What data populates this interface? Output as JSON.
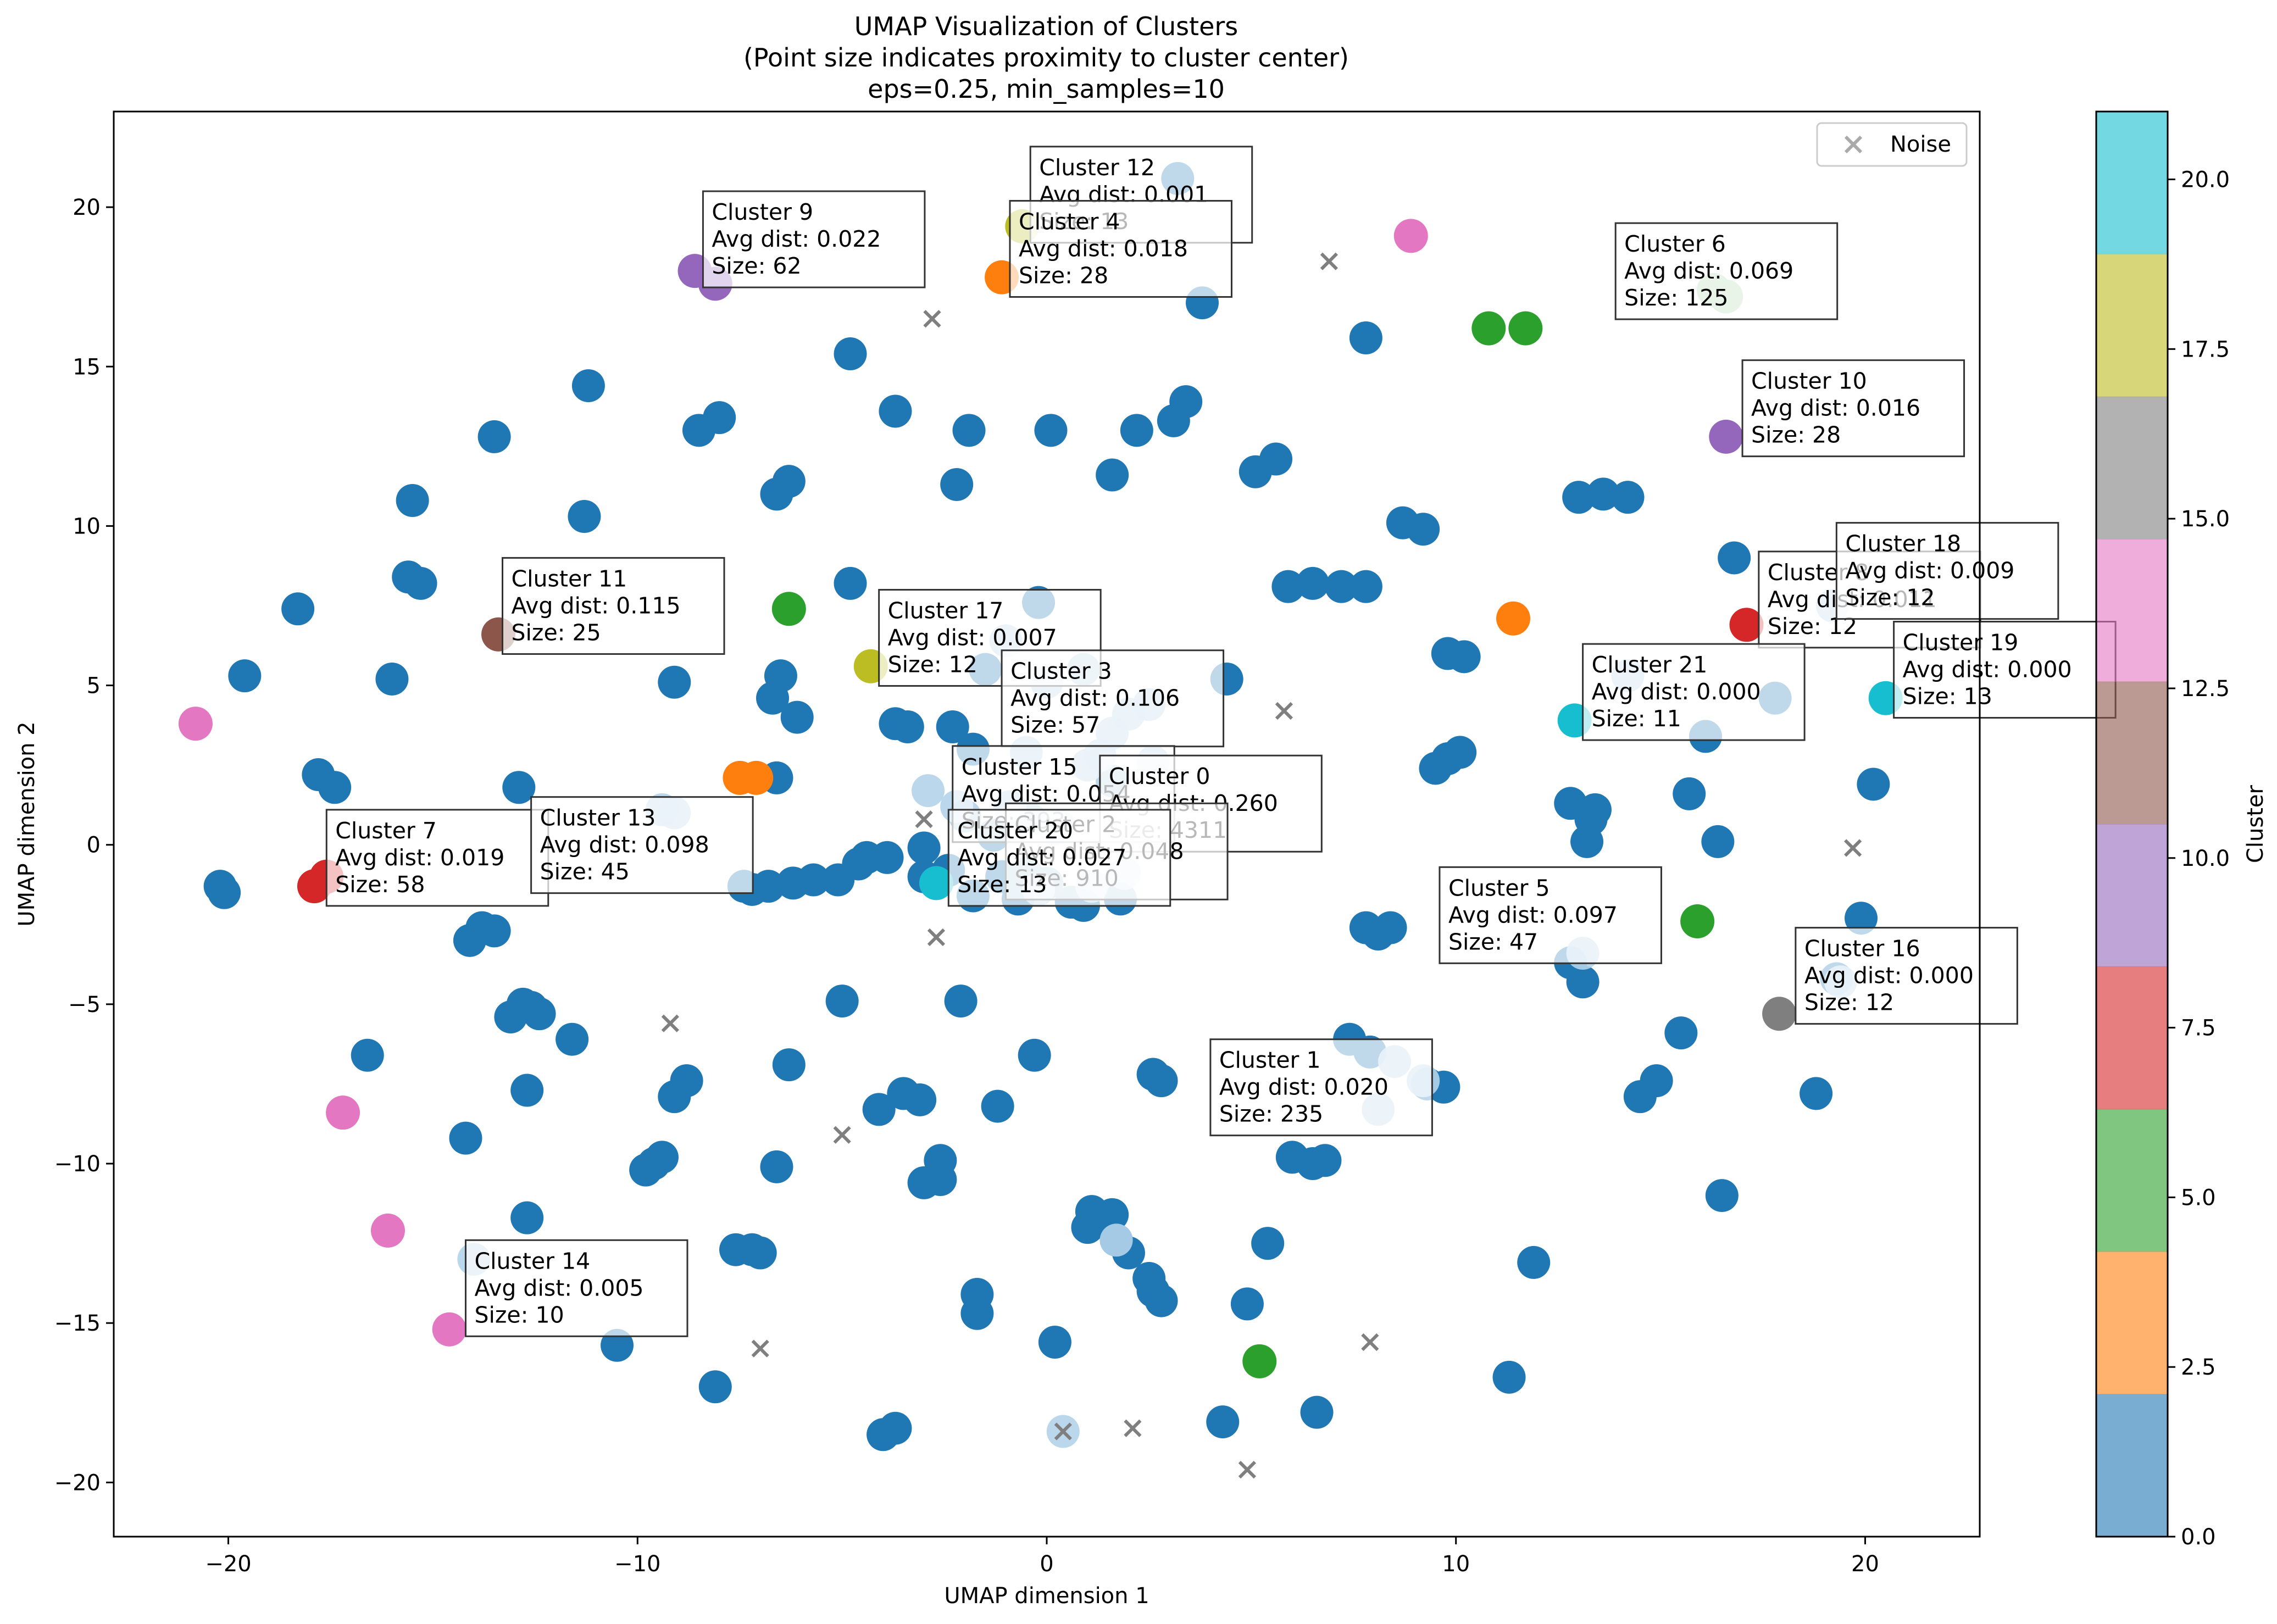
{
  "chart_data": {
    "type": "scatter",
    "title": [
      "UMAP Visualization of Clusters",
      "(Point size indicates proximity to cluster center)",
      "eps=0.25, min_samples=10"
    ],
    "xlabel": "UMAP dimension 1",
    "ylabel": "UMAP dimension 2",
    "xlim": [
      -22.8,
      22.8
    ],
    "ylim": [
      -21.7,
      23
    ],
    "xticks": [
      -20,
      -10,
      0,
      10,
      20
    ],
    "yticks": [
      -20,
      -15,
      -10,
      -5,
      0,
      5,
      10,
      15,
      20
    ],
    "grid": false,
    "legend": {
      "position": "upper right",
      "entries": [
        {
          "label": "Noise",
          "marker": "x",
          "color": "#7f7f7f"
        }
      ]
    },
    "colorbar": {
      "label": "Cluster",
      "range": [
        0,
        21
      ],
      "ticks": [
        "0.0",
        "2.5",
        "5.0",
        "7.5",
        "10.0",
        "12.5",
        "15.0",
        "17.5",
        "20.0"
      ],
      "colors": [
        "#1f77b4",
        "#ff7f0e",
        "#2ca02c",
        "#d62728",
        "#9467bd",
        "#8c564b",
        "#e377c2",
        "#7f7f7f",
        "#bcbd22",
        "#17becf"
      ]
    },
    "base_blue_points": [
      [
        3.2,
        20.9
      ],
      [
        -4.8,
        15.4
      ],
      [
        3.8,
        17.0
      ],
      [
        7.8,
        15.9
      ],
      [
        -11.2,
        14.4
      ],
      [
        -13.5,
        12.8
      ],
      [
        -8.5,
        13.0
      ],
      [
        -8.0,
        13.4
      ],
      [
        -3.7,
        13.6
      ],
      [
        -1.9,
        13.0
      ],
      [
        0.1,
        13.0
      ],
      [
        2.2,
        13.0
      ],
      [
        3.1,
        13.3
      ],
      [
        3.4,
        13.9
      ],
      [
        -6.6,
        11.0
      ],
      [
        -6.3,
        11.4
      ],
      [
        -2.2,
        11.3
      ],
      [
        1.6,
        11.6
      ],
      [
        5.1,
        11.7
      ],
      [
        5.6,
        12.1
      ],
      [
        -11.3,
        10.3
      ],
      [
        -15.5,
        10.8
      ],
      [
        -18.3,
        7.4
      ],
      [
        -19.6,
        5.3
      ],
      [
        -15.6,
        8.4
      ],
      [
        -15.3,
        8.2
      ],
      [
        -16.0,
        5.2
      ],
      [
        -9.1,
        5.1
      ],
      [
        -4.8,
        8.2
      ],
      [
        -6.5,
        5.3
      ],
      [
        -6.7,
        4.6
      ],
      [
        -6.1,
        4.0
      ],
      [
        -3.7,
        3.8
      ],
      [
        -3.4,
        3.7
      ],
      [
        -2.3,
        3.7
      ],
      [
        -1.8,
        3.0
      ],
      [
        -0.2,
        7.6
      ],
      [
        -1.5,
        5.5
      ],
      [
        0.9,
        5.5
      ],
      [
        4.4,
        5.2
      ],
      [
        5.9,
        8.1
      ],
      [
        6.5,
        8.2
      ],
      [
        7.2,
        8.1
      ],
      [
        7.8,
        8.1
      ],
      [
        8.7,
        10.1
      ],
      [
        9.2,
        9.9
      ],
      [
        9.8,
        6.0
      ],
      [
        10.2,
        5.9
      ],
      [
        9.5,
        2.4
      ],
      [
        9.8,
        2.7
      ],
      [
        10.1,
        2.9
      ],
      [
        13.0,
        10.9
      ],
      [
        13.6,
        11.0
      ],
      [
        14.2,
        10.9
      ],
      [
        16.8,
        9.0
      ],
      [
        16.1,
        3.4
      ],
      [
        17.8,
        4.6
      ],
      [
        15.7,
        1.6
      ],
      [
        16.4,
        0.1
      ],
      [
        12.8,
        1.3
      ],
      [
        13.3,
        0.8
      ],
      [
        13.4,
        1.1
      ],
      [
        13.2,
        0.1
      ],
      [
        20.2,
        1.9
      ],
      [
        19.9,
        -2.3
      ],
      [
        19.3,
        -4.2
      ],
      [
        12.8,
        -3.7
      ],
      [
        13.1,
        -4.3
      ],
      [
        7.8,
        -2.6
      ],
      [
        8.1,
        -2.8
      ],
      [
        8.4,
        -2.6
      ],
      [
        7.4,
        -6.1
      ],
      [
        7.9,
        -6.5
      ],
      [
        9.3,
        -7.5
      ],
      [
        9.7,
        -7.6
      ],
      [
        6.0,
        -9.8
      ],
      [
        6.5,
        -10.0
      ],
      [
        6.8,
        -9.9
      ],
      [
        5.4,
        -12.5
      ],
      [
        4.9,
        -14.4
      ],
      [
        11.9,
        -13.1
      ],
      [
        11.3,
        -16.7
      ],
      [
        4.3,
        -18.1
      ],
      [
        6.6,
        -17.8
      ],
      [
        15.5,
        -5.9
      ],
      [
        14.9,
        -7.4
      ],
      [
        14.5,
        -7.9
      ],
      [
        16.5,
        -11.0
      ],
      [
        18.8,
        -7.8
      ],
      [
        2.5,
        -13.6
      ],
      [
        2.6,
        -14.0
      ],
      [
        2.8,
        -14.3
      ],
      [
        1.1,
        -11.5
      ],
      [
        1.6,
        -11.6
      ],
      [
        1.7,
        -12.4
      ],
      [
        1.0,
        -12.0
      ],
      [
        2.0,
        -12.8
      ],
      [
        2.6,
        -7.2
      ],
      [
        2.8,
        -7.4
      ],
      [
        0.2,
        -15.6
      ],
      [
        -1.7,
        -14.1
      ],
      [
        -1.7,
        -14.7
      ],
      [
        -4.0,
        -18.5
      ],
      [
        -3.7,
        -18.3
      ],
      [
        -5.0,
        -4.9
      ],
      [
        -6.6,
        -10.1
      ],
      [
        -6.3,
        -6.9
      ],
      [
        -3.5,
        -7.8
      ],
      [
        -3.1,
        -8.0
      ],
      [
        -4.1,
        -8.3
      ],
      [
        -3.0,
        -10.6
      ],
      [
        -2.6,
        -10.5
      ],
      [
        -2.6,
        -9.9
      ],
      [
        -1.2,
        -8.2
      ],
      [
        -2.1,
        -4.9
      ],
      [
        -0.3,
        -6.6
      ],
      [
        -7.2,
        -12.7
      ],
      [
        -7.6,
        -12.7
      ],
      [
        -7.0,
        -12.8
      ],
      [
        -8.8,
        -7.4
      ],
      [
        -9.1,
        -7.9
      ],
      [
        -9.6,
        -10.0
      ],
      [
        -9.4,
        -9.8
      ],
      [
        -9.8,
        -10.2
      ],
      [
        -11.6,
        -6.1
      ],
      [
        -12.8,
        -5.0
      ],
      [
        -12.6,
        -5.1
      ],
      [
        -12.4,
        -5.3
      ],
      [
        -13.1,
        -5.4
      ],
      [
        -12.7,
        -7.7
      ],
      [
        -14.2,
        -9.2
      ],
      [
        -14.1,
        -3.0
      ],
      [
        -13.8,
        -2.6
      ],
      [
        -13.5,
        -2.7
      ],
      [
        -12.7,
        -11.7
      ],
      [
        -16.6,
        -6.6
      ],
      [
        -20.2,
        -1.3
      ],
      [
        -20.1,
        -1.5
      ],
      [
        -17.8,
        2.2
      ],
      [
        -17.4,
        1.8
      ],
      [
        -12.9,
        1.8
      ],
      [
        -10.5,
        -15.7
      ],
      [
        -8.1,
        -17.0
      ],
      [
        -1.1,
        -1.0
      ],
      [
        -0.5,
        -0.9
      ],
      [
        0.0,
        -1.2
      ],
      [
        0.6,
        -1.8
      ],
      [
        0.9,
        -1.9
      ],
      [
        -0.7,
        -1.7
      ],
      [
        -1.8,
        -1.6
      ],
      [
        -2.4,
        -0.8
      ],
      [
        -3.0,
        -1.0
      ],
      [
        -3.9,
        -0.4
      ],
      [
        -4.4,
        -0.4
      ],
      [
        -5.1,
        -1.1
      ],
      [
        -5.7,
        -1.1
      ],
      [
        -6.2,
        -1.2
      ],
      [
        -6.8,
        -1.3
      ],
      [
        -7.2,
        -1.4
      ],
      [
        -7.4,
        -1.3
      ],
      [
        -6.6,
        2.1
      ],
      [
        -2.0,
        0.9
      ],
      [
        -1.3,
        0.3
      ],
      [
        -0.4,
        0.8
      ],
      [
        0.3,
        0.6
      ],
      [
        1.6,
        2.0
      ],
      [
        1.8,
        -1.7
      ],
      [
        -3.0,
        -0.1
      ],
      [
        -4.6,
        -0.6
      ]
    ],
    "light_points": [
      [
        -0.2,
        -1.4
      ],
      [
        1.1,
        -1.3
      ],
      [
        1.9,
        -0.9
      ],
      [
        0.2,
        0.5
      ],
      [
        -2.9,
        1.7
      ],
      [
        1.0,
        2.5
      ],
      [
        1.6,
        3.5
      ],
      [
        2.0,
        4.1
      ],
      [
        2.5,
        4.4
      ],
      [
        -1.0,
        6.4
      ],
      [
        0.0,
        5.1
      ],
      [
        1.3,
        2.8
      ],
      [
        2.6,
        2.6
      ],
      [
        -0.5,
        2.9
      ],
      [
        1.7,
        -12.4
      ],
      [
        8.1,
        -8.3
      ],
      [
        9.2,
        -7.4
      ],
      [
        8.5,
        -6.8
      ],
      [
        -9.4,
        1.1
      ],
      [
        -9.1,
        1.0
      ],
      [
        13.1,
        -3.4
      ],
      [
        14.2,
        5.3
      ],
      [
        19.2,
        7.5
      ],
      [
        19.4,
        -4.3
      ],
      [
        0.4,
        -18.4
      ],
      [
        -14.0,
        -13.0
      ],
      [
        -2.2,
        1.2
      ],
      [
        -0.9,
        1.2
      ],
      [
        2.4,
        0.6
      ]
    ],
    "clusters_colored": [
      {
        "x": -17.9,
        "y": -1.3,
        "color": "#d62728"
      },
      {
        "x": -17.6,
        "y": -1.0,
        "color": "#d62728"
      },
      {
        "x": 17.1,
        "y": 6.9,
        "color": "#d62728"
      },
      {
        "x": -13.4,
        "y": 6.6,
        "color": "#8c564b"
      },
      {
        "x": -8.6,
        "y": 18.0,
        "color": "#9467bd"
      },
      {
        "x": -8.1,
        "y": 17.6,
        "color": "#9467bd"
      },
      {
        "x": 16.6,
        "y": 12.8,
        "color": "#9467bd"
      },
      {
        "x": -1.1,
        "y": 17.8,
        "color": "#ff7f0e"
      },
      {
        "x": -7.5,
        "y": 2.1,
        "color": "#ff7f0e"
      },
      {
        "x": -7.1,
        "y": 2.1,
        "color": "#ff7f0e"
      },
      {
        "x": 11.4,
        "y": 7.1,
        "color": "#ff7f0e"
      },
      {
        "x": -6.3,
        "y": 7.4,
        "color": "#2ca02c"
      },
      {
        "x": 10.8,
        "y": 16.2,
        "color": "#2ca02c"
      },
      {
        "x": 11.7,
        "y": 16.2,
        "color": "#2ca02c"
      },
      {
        "x": 15.9,
        "y": -2.4,
        "color": "#2ca02c"
      },
      {
        "x": 5.2,
        "y": -16.2,
        "color": "#2ca02c"
      },
      {
        "x": -4.3,
        "y": 5.6,
        "color": "#bcbd22"
      },
      {
        "x": 12.9,
        "y": 3.9,
        "color": "#17becf"
      },
      {
        "x": 20.5,
        "y": 4.6,
        "color": "#17becf"
      },
      {
        "x": -2.7,
        "y": -1.2,
        "color": "#17becf"
      },
      {
        "x": 17.9,
        "y": -5.3,
        "color": "#7f7f7f"
      },
      {
        "x": -20.8,
        "y": 3.8,
        "color": "#e377c2"
      },
      {
        "x": 8.9,
        "y": 19.1,
        "color": "#e377c2"
      },
      {
        "x": -17.2,
        "y": -8.4,
        "color": "#e377c2"
      },
      {
        "x": -16.1,
        "y": -12.1,
        "color": "#e377c2"
      },
      {
        "x": -14.6,
        "y": -15.2,
        "color": "#e377c2"
      },
      {
        "x": -0.6,
        "y": 19.4,
        "color": "#bcbd22"
      },
      {
        "x": 16.3,
        "y": 17.4,
        "color": "#aed8ae"
      },
      {
        "x": 16.6,
        "y": 17.2,
        "color": "#aed8ae"
      }
    ],
    "noise_points": [
      [
        6.9,
        18.3
      ],
      [
        -2.8,
        16.5
      ],
      [
        5.8,
        4.2
      ],
      [
        19.7,
        -0.1
      ],
      [
        -2.7,
        -2.9
      ],
      [
        -9.2,
        -5.6
      ],
      [
        -5.0,
        -9.1
      ],
      [
        -7.0,
        -15.8
      ],
      [
        0.4,
        -18.4
      ],
      [
        2.1,
        -18.3
      ],
      [
        4.9,
        -19.6
      ],
      [
        7.9,
        -15.6
      ],
      [
        -3.0,
        0.8
      ]
    ],
    "annotations": [
      {
        "lines": [
          "Cluster 12",
          "Avg dist: 0.001",
          "Size: 13"
        ],
        "x": -0.4,
        "y": 21.9
      },
      {
        "lines": [
          "Cluster 9",
          "Avg dist: 0.022",
          "Size: 62"
        ],
        "x": -8.4,
        "y": 20.5
      },
      {
        "lines": [
          "Cluster 4",
          "Avg dist: 0.018",
          "Size: 28"
        ],
        "x": -0.9,
        "y": 20.2
      },
      {
        "lines": [
          "Cluster 6",
          "Avg dist: 0.069",
          "Size: 125"
        ],
        "x": 13.9,
        "y": 19.5
      },
      {
        "lines": [
          "Cluster 10",
          "Avg dist: 0.016",
          "Size: 28"
        ],
        "x": 17.0,
        "y": 15.2
      },
      {
        "lines": [
          "Cluster 11",
          "Avg dist: 0.115",
          "Size: 25"
        ],
        "x": -13.3,
        "y": 9.0
      },
      {
        "lines": [
          "Cluster 17",
          "Avg dist: 0.007",
          "Size: 12"
        ],
        "x": -4.1,
        "y": 8.0
      },
      {
        "lines": [
          "Cluster 8",
          "Avg dist: 0.011",
          "Size: 12"
        ],
        "x": 17.4,
        "y": 9.2
      },
      {
        "lines": [
          "Cluster 18",
          "Avg dist: 0.009",
          "Size: 12"
        ],
        "x": 19.3,
        "y": 10.1
      },
      {
        "lines": [
          "Cluster 3",
          "Avg dist: 0.106",
          "Size: 57"
        ],
        "x": -1.1,
        "y": 6.1
      },
      {
        "lines": [
          "Cluster 19",
          "Avg dist: 0.000",
          "Size: 13"
        ],
        "x": 20.7,
        "y": 7.0
      },
      {
        "lines": [
          "Cluster 21",
          "Avg dist: 0.000",
          "Size: 11"
        ],
        "x": 13.1,
        "y": 6.3
      },
      {
        "lines": [
          "Cluster 15",
          "Avg dist: 0.054",
          "Size: 393"
        ],
        "x": -2.3,
        "y": 3.1
      },
      {
        "lines": [
          "Cluster 0",
          "Avg dist: 0.260",
          "Size: 4311"
        ],
        "x": 1.3,
        "y": 2.8
      },
      {
        "lines": [
          "Cluster 2",
          "Avg dist: 0.048",
          "Size: 910"
        ],
        "x": -1.0,
        "y": 1.3
      },
      {
        "lines": [
          "Cluster 7",
          "Avg dist: 0.019",
          "Size: 58"
        ],
        "x": -17.6,
        "y": 1.1
      },
      {
        "lines": [
          "Cluster 13",
          "Avg dist: 0.098",
          "Size: 45"
        ],
        "x": -12.6,
        "y": 1.5
      },
      {
        "lines": [
          "Cluster 20",
          "Avg dist: 0.027",
          "Size: 13"
        ],
        "x": -2.4,
        "y": 1.1
      },
      {
        "lines": [
          "Cluster 5",
          "Avg dist: 0.097",
          "Size: 47"
        ],
        "x": 9.6,
        "y": -0.7
      },
      {
        "lines": [
          "Cluster 16",
          "Avg dist: 0.000",
          "Size: 12"
        ],
        "x": 18.3,
        "y": -2.6
      },
      {
        "lines": [
          "Cluster 1",
          "Avg dist: 0.020",
          "Size: 235"
        ],
        "x": 4.0,
        "y": -6.1
      },
      {
        "lines": [
          "Cluster 14",
          "Avg dist: 0.005",
          "Size: 10"
        ],
        "x": -14.2,
        "y": -12.4
      }
    ]
  }
}
